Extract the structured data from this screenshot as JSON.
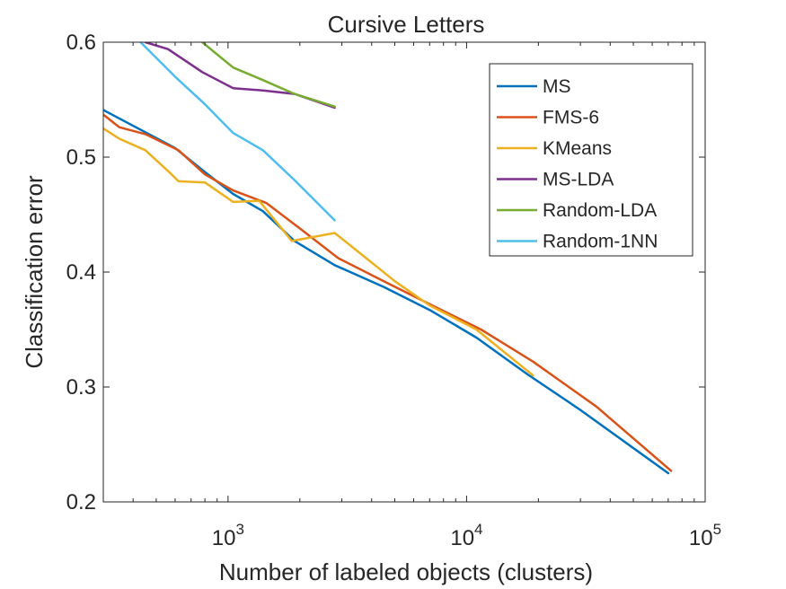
{
  "chart_data": {
    "type": "line",
    "title": "Cursive Letters",
    "xlabel": "Number of labeled objects (clusters)",
    "ylabel": "Classification error",
    "xscale": "log",
    "xlim": [
      300,
      100000
    ],
    "ylim": [
      0.2,
      0.6
    ],
    "x_ticks": [
      {
        "value": 1000,
        "base": "10",
        "exp": "3"
      },
      {
        "value": 10000,
        "base": "10",
        "exp": "4"
      },
      {
        "value": 100000,
        "base": "10",
        "exp": "5"
      }
    ],
    "y_ticks": [
      {
        "value": 0.2,
        "label": "0.2"
      },
      {
        "value": 0.3,
        "label": "0.3"
      },
      {
        "value": 0.4,
        "label": "0.4"
      },
      {
        "value": 0.5,
        "label": "0.5"
      },
      {
        "value": 0.6,
        "label": "0.6"
      }
    ],
    "grid": false,
    "legend_position": "top-right",
    "series": [
      {
        "name": "MS",
        "color": "#0072BD",
        "x": [
          300,
          600,
          800,
          1050,
          1400,
          1900,
          2800,
          4500,
          7000,
          11000,
          18000,
          30000,
          70000
        ],
        "y": [
          0.541,
          0.508,
          0.487,
          0.468,
          0.453,
          0.427,
          0.406,
          0.387,
          0.367,
          0.343,
          0.311,
          0.28,
          0.225
        ]
      },
      {
        "name": "FMS-6",
        "color": "#D95319",
        "x": [
          300,
          350,
          450,
          620,
          800,
          1050,
          1450,
          2000,
          2900,
          4500,
          7000,
          11500,
          19000,
          35000,
          72000
        ],
        "y": [
          0.537,
          0.526,
          0.52,
          0.506,
          0.485,
          0.471,
          0.46,
          0.438,
          0.412,
          0.392,
          0.372,
          0.35,
          0.322,
          0.283,
          0.227
        ]
      },
      {
        "name": "KMeans",
        "color": "#EDB120",
        "x": [
          300,
          350,
          450,
          560,
          620,
          800,
          1050,
          1350,
          1850,
          2800,
          3500,
          5000,
          7000,
          11000,
          19000
        ],
        "y": [
          0.525,
          0.516,
          0.506,
          0.488,
          0.479,
          0.478,
          0.461,
          0.462,
          0.427,
          0.434,
          0.418,
          0.392,
          0.371,
          0.35,
          0.31
        ]
      },
      {
        "name": "MS-LDA",
        "color": "#7E2F8E",
        "x": [
          450,
          560,
          780,
          1050,
          1400,
          1900,
          2800
        ],
        "y": [
          0.6,
          0.594,
          0.574,
          0.56,
          0.558,
          0.555,
          0.543
        ]
      },
      {
        "name": "Random-LDA",
        "color": "#77AC30",
        "x": [
          780,
          1050,
          1400,
          1900,
          2800
        ],
        "y": [
          0.6,
          0.578,
          0.567,
          0.555,
          0.544
        ]
      },
      {
        "name": "Random-1NN",
        "color": "#4DBEEE",
        "x": [
          430,
          600,
          800,
          1050,
          1400,
          1900,
          2800
        ],
        "y": [
          0.6,
          0.57,
          0.546,
          0.521,
          0.506,
          0.48,
          0.445
        ]
      }
    ]
  }
}
